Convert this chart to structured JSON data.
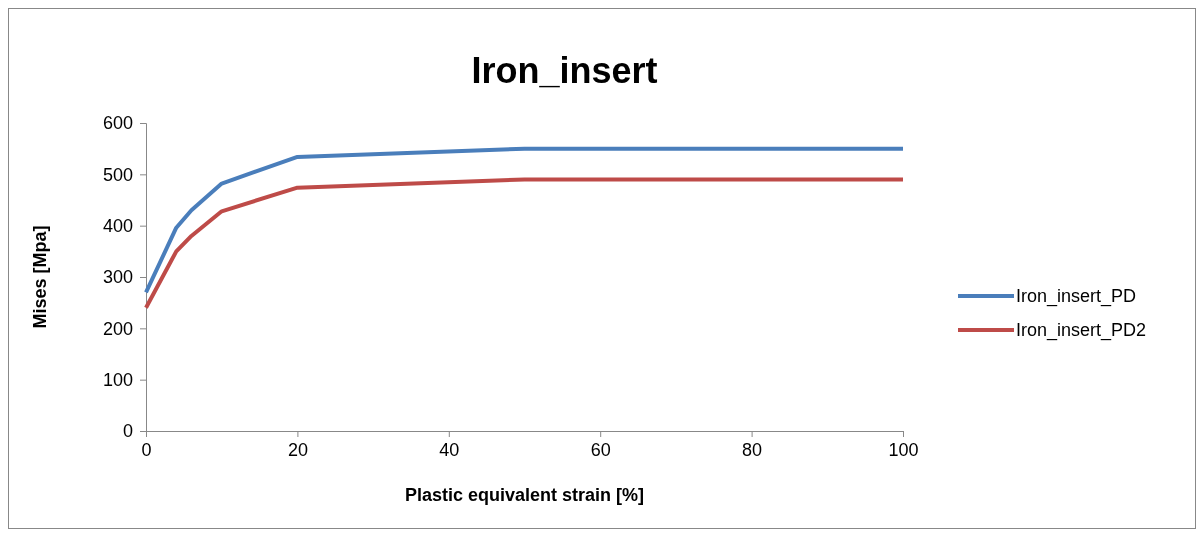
{
  "chart_data": {
    "type": "line",
    "title": "Iron_insert",
    "xlabel": "Plastic equivalent strain [%]",
    "ylabel": "Mises [Mpa]",
    "x": [
      0,
      4,
      6,
      10,
      20,
      50,
      100
    ],
    "series": [
      {
        "name": "Iron_insert_PD",
        "color": "#4a7ebb",
        "values": [
          270,
          396,
          430,
          482,
          534,
          550,
          550
        ]
      },
      {
        "name": "Iron_insert_PD2",
        "color": "#be4b48",
        "values": [
          240,
          350,
          380,
          428,
          474,
          490,
          490
        ]
      }
    ],
    "xlim": [
      0,
      100
    ],
    "xticks": [
      0,
      20,
      40,
      60,
      80,
      100
    ],
    "ylim": [
      0,
      600
    ],
    "yticks": [
      0,
      100,
      200,
      300,
      400,
      500,
      600
    ],
    "grid": false,
    "legend": "right",
    "marker": "none",
    "line_style": "solid"
  }
}
